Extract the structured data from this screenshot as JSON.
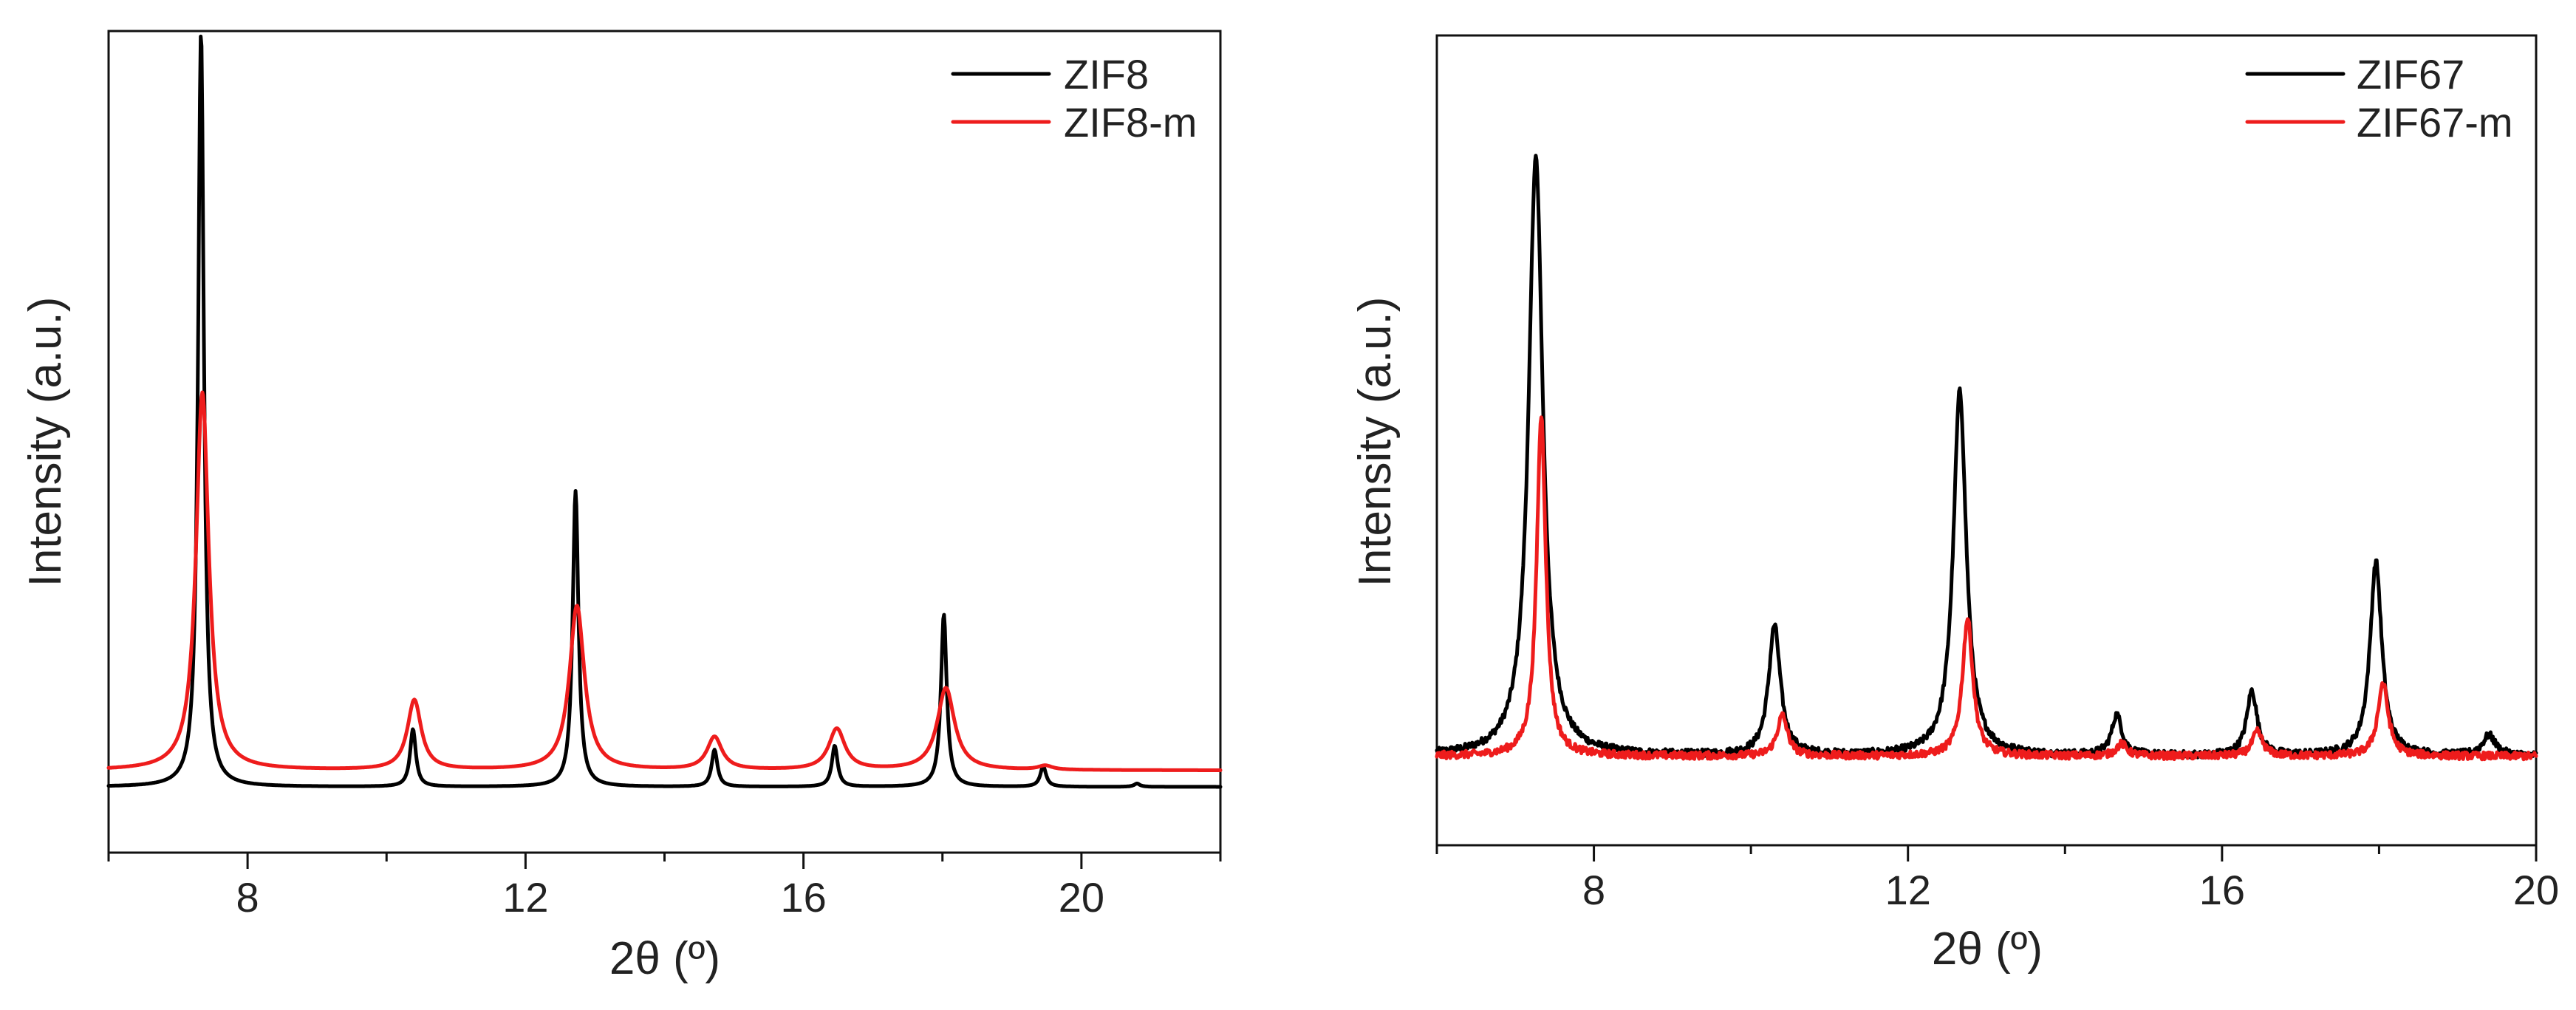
{
  "chart_data": [
    {
      "type": "line",
      "title": "",
      "xlabel": "2θ (º)",
      "ylabel": "Intensity (a.u.)",
      "xlim": [
        6,
        22
      ],
      "ylim": [
        0,
        100
      ],
      "xticks": [
        8,
        12,
        16,
        20
      ],
      "xtick_labels": [
        "8",
        "12",
        "16",
        "20"
      ],
      "yticks_shown": false,
      "legend_position": "top-right",
      "series": [
        {
          "name": "ZIF8",
          "color": "#000000",
          "baseline": 8,
          "peaks": [
            {
              "pos": 7.33,
              "height": 92,
              "width": 0.05
            },
            {
              "pos": 10.38,
              "height": 7,
              "width": 0.05
            },
            {
              "pos": 12.72,
              "height": 36,
              "width": 0.05
            },
            {
              "pos": 14.72,
              "height": 4.5,
              "width": 0.05
            },
            {
              "pos": 16.45,
              "height": 5,
              "width": 0.05
            },
            {
              "pos": 18.02,
              "height": 21,
              "width": 0.05
            },
            {
              "pos": 19.45,
              "height": 2.5,
              "width": 0.05
            },
            {
              "pos": 20.8,
              "height": 0.4,
              "width": 0.05
            }
          ]
        },
        {
          "name": "ZIF8-m",
          "color": "#ee1c1c",
          "baseline": 10,
          "peaks": [
            {
              "pos": 7.35,
              "height": 46,
              "width": 0.11
            },
            {
              "pos": 10.4,
              "height": 8.5,
              "width": 0.12
            },
            {
              "pos": 12.74,
              "height": 20,
              "width": 0.13
            },
            {
              "pos": 14.72,
              "height": 4,
              "width": 0.13
            },
            {
              "pos": 16.48,
              "height": 5,
              "width": 0.14
            },
            {
              "pos": 18.05,
              "height": 10,
              "width": 0.15
            },
            {
              "pos": 19.48,
              "height": 0.5,
              "width": 0.12
            }
          ]
        }
      ]
    },
    {
      "type": "line",
      "title": "",
      "xlabel": "2θ (º)",
      "ylabel": "Intensity (a.u.)",
      "xlim": [
        6,
        20
      ],
      "ylim": [
        0,
        100
      ],
      "xticks": [
        8,
        12,
        16,
        20
      ],
      "xtick_labels": [
        "8",
        "12",
        "16",
        "20"
      ],
      "yticks_shown": false,
      "legend_position": "top-right",
      "series": [
        {
          "name": "ZIF67",
          "color": "#000000",
          "baseline": 11,
          "noise": 0.9,
          "peaks": [
            {
              "pos": 7.26,
              "height": 74,
              "width": 0.11
            },
            {
              "pos": 10.3,
              "height": 16,
              "width": 0.09
            },
            {
              "pos": 12.66,
              "height": 45,
              "width": 0.1
            },
            {
              "pos": 14.66,
              "height": 5,
              "width": 0.08
            },
            {
              "pos": 16.38,
              "height": 8,
              "width": 0.08
            },
            {
              "pos": 17.96,
              "height": 24,
              "width": 0.09
            },
            {
              "pos": 19.4,
              "height": 2.5,
              "width": 0.1
            }
          ]
        },
        {
          "name": "ZIF67-m",
          "color": "#ee1c1c",
          "baseline": 11,
          "noise": 0.9,
          "peaks": [
            {
              "pos": 7.33,
              "height": 42,
              "width": 0.07
            },
            {
              "pos": 10.4,
              "height": 5,
              "width": 0.08
            },
            {
              "pos": 12.76,
              "height": 17,
              "width": 0.08
            },
            {
              "pos": 14.72,
              "height": 1.5,
              "width": 0.08
            },
            {
              "pos": 16.45,
              "height": 3,
              "width": 0.08
            },
            {
              "pos": 18.05,
              "height": 9,
              "width": 0.08
            }
          ]
        }
      ]
    }
  ]
}
